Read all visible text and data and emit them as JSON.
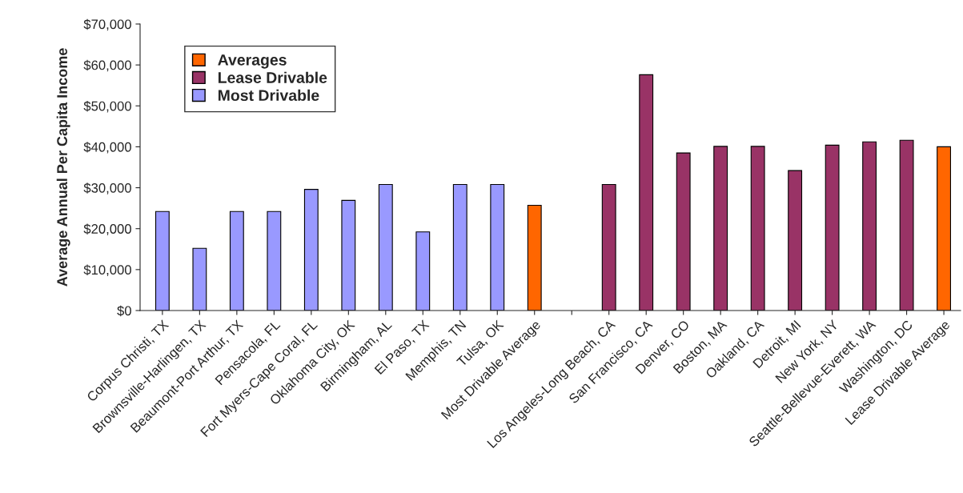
{
  "chart_data": {
    "type": "bar",
    "ylabel": "Average Annual Per Capita Income",
    "categories": [
      "Corpus Christi, TX",
      "Brownsville-Harlingen, TX",
      "Beaumont-Port Arthur, TX",
      "Pensacola, FL",
      "Fort Myers-Cape Coral, FL",
      "Oklahoma City, OK",
      "Birmingham, AL",
      "El Paso, TX",
      "Memphis, TN",
      "Tulsa, OK",
      "Most Drivable Average",
      null,
      "Los Angeles-Long Beach, CA",
      "San Francisco, CA",
      "Denver, CO",
      "Boston, MA",
      "Oakland, CA",
      "Detroit, MI",
      "New York, NY",
      "Seattle-Bellevue-Everett, WA",
      "Washington, DC",
      "Lease Drivable Average"
    ],
    "series": [
      {
        "name": "Averages",
        "color": "#ff6600",
        "values": [
          null,
          null,
          null,
          null,
          null,
          null,
          null,
          null,
          null,
          null,
          25700,
          null,
          null,
          null,
          null,
          null,
          null,
          null,
          null,
          null,
          null,
          40000
        ]
      },
      {
        "name": "Lease Drivable",
        "color": "#993366",
        "values": [
          null,
          null,
          null,
          null,
          null,
          null,
          null,
          null,
          null,
          null,
          null,
          null,
          30800,
          57600,
          38500,
          40100,
          40100,
          34200,
          40400,
          41200,
          41600,
          null
        ]
      },
      {
        "name": "Most Drivable",
        "color": "#9999ff",
        "values": [
          24200,
          15200,
          24200,
          24200,
          29600,
          26900,
          30800,
          19200,
          30800,
          30800,
          null,
          null,
          null,
          null,
          null,
          null,
          null,
          null,
          null,
          null,
          null,
          null
        ]
      }
    ],
    "ylim": [
      0,
      70000
    ],
    "yticks": [
      {
        "value": 0,
        "label": "$0"
      },
      {
        "value": 10000,
        "label": "$10,000"
      },
      {
        "value": 20000,
        "label": "$20,000"
      },
      {
        "value": 30000,
        "label": "$30,000"
      },
      {
        "value": 40000,
        "label": "$40,000"
      },
      {
        "value": 50000,
        "label": "$50,000"
      },
      {
        "value": 60000,
        "label": "$60,000"
      },
      {
        "value": 70000,
        "label": "$70,000"
      }
    ],
    "grid": false,
    "legend": "top left"
  }
}
